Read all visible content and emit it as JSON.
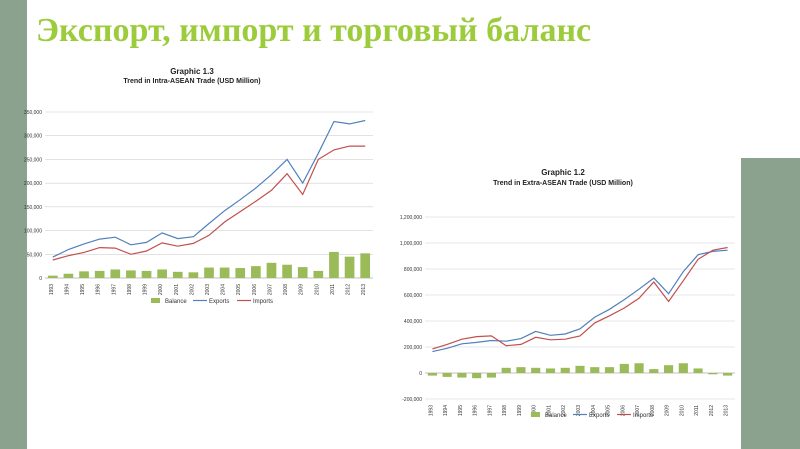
{
  "slide": {
    "title": "Экспорт, импорт и торговый баланс",
    "colors": {
      "title": "#9ccc3c",
      "side_panel": "#8aa28e",
      "balance": "#9bbb59",
      "exports": "#4f81bd",
      "imports": "#c0504d"
    }
  },
  "chart_data": [
    {
      "type": "bar+line",
      "title": "Graphic 1.3",
      "subtitle": "Trend in Intra-ASEAN Trade (USD Million)",
      "categories": [
        "1993",
        "1994",
        "1995",
        "1996",
        "1997",
        "1998",
        "1999",
        "2000",
        "2001",
        "2002",
        "2003",
        "2004",
        "2005",
        "2006",
        "2007",
        "2008",
        "2009",
        "2010",
        "2011",
        "2012",
        "2013"
      ],
      "ylim": [
        0,
        350000
      ],
      "yticks": [
        0,
        50000,
        100000,
        150000,
        200000,
        250000,
        300000,
        350000
      ],
      "ytick_labels": [
        "0",
        "50,000",
        "100,000",
        "150,000",
        "200,000",
        "250,000",
        "300,000",
        "350,000"
      ],
      "series": [
        {
          "name": "Balance",
          "type": "bar",
          "color": "#9bbb59",
          "values": [
            5000,
            9000,
            14000,
            15000,
            18000,
            16000,
            15000,
            18000,
            13000,
            12000,
            22000,
            22000,
            21000,
            25000,
            32000,
            28000,
            23000,
            15000,
            55000,
            45000,
            52000
          ]
        },
        {
          "name": "Exports",
          "type": "line",
          "color": "#4f81bd",
          "values": [
            44000,
            60000,
            72000,
            82000,
            86000,
            70000,
            75000,
            95000,
            83000,
            87000,
            115000,
            142000,
            165000,
            190000,
            218000,
            250000,
            200000,
            263000,
            330000,
            325000,
            332000
          ]
        },
        {
          "name": "Imports",
          "type": "line",
          "color": "#c0504d",
          "values": [
            38000,
            47000,
            54000,
            64000,
            63000,
            50000,
            57000,
            74000,
            67000,
            73000,
            90000,
            118000,
            140000,
            162000,
            185000,
            220000,
            176000,
            250000,
            270000,
            278000,
            278000
          ]
        }
      ],
      "legend_position": "bottom",
      "grid": true
    },
    {
      "type": "bar+line",
      "title": "Graphic 1.2",
      "subtitle": "Trend in Extra-ASEAN Trade (USD Million)",
      "categories": [
        "1993",
        "1994",
        "1995",
        "1996",
        "1997",
        "1998",
        "1999",
        "2000",
        "2001",
        "2002",
        "2003",
        "2004",
        "2005",
        "2006",
        "2007",
        "2008",
        "2009",
        "2010",
        "2011",
        "2012",
        "2013"
      ],
      "ylim": [
        -200000,
        1200000
      ],
      "yticks": [
        -200000,
        0,
        200000,
        400000,
        600000,
        800000,
        1000000,
        1200000
      ],
      "ytick_labels": [
        "-200,000",
        "0",
        "200,000",
        "400,000",
        "600,000",
        "800,000",
        "1,000,000",
        "1,200,000"
      ],
      "series": [
        {
          "name": "Balance",
          "type": "bar",
          "color": "#9bbb59",
          "values": [
            -20000,
            -30000,
            -35000,
            -40000,
            -35000,
            40000,
            45000,
            40000,
            35000,
            40000,
            55000,
            45000,
            45000,
            70000,
            75000,
            30000,
            60000,
            75000,
            35000,
            -10000,
            -20000
          ]
        },
        {
          "name": "Exports",
          "type": "line",
          "color": "#4f81bd",
          "values": [
            165000,
            190000,
            225000,
            235000,
            250000,
            245000,
            265000,
            320000,
            290000,
            300000,
            340000,
            430000,
            490000,
            565000,
            645000,
            730000,
            610000,
            780000,
            910000,
            935000,
            945000
          ]
        },
        {
          "name": "Imports",
          "type": "line",
          "color": "#c0504d",
          "values": [
            185000,
            220000,
            260000,
            280000,
            285000,
            210000,
            220000,
            275000,
            255000,
            260000,
            285000,
            385000,
            440000,
            500000,
            575000,
            700000,
            550000,
            710000,
            875000,
            945000,
            965000
          ]
        }
      ],
      "legend_position": "bottom",
      "grid": true
    }
  ]
}
